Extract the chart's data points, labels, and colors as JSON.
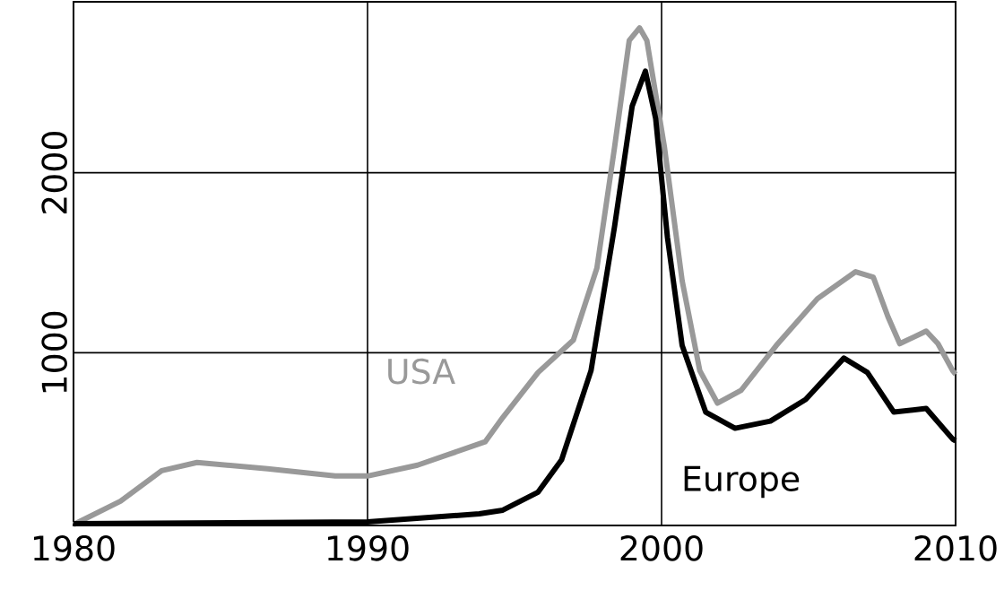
{
  "chart_data": {
    "type": "line",
    "xlim": [
      1980,
      2010
    ],
    "ylim": [
      40,
      2950
    ],
    "xticks": [
      1980,
      1990,
      2000,
      2010
    ],
    "yticks": [
      1000,
      2000
    ],
    "grid": true,
    "legend": false,
    "marker": "none",
    "line_style": "solid",
    "series": [
      {
        "name": "USA",
        "color": "#999999",
        "x": [
          1980,
          1981.6,
          1983,
          1984.2,
          1986.6,
          1988.9,
          1990,
          1991.7,
          1994,
          1994.6,
          1995.8,
          1997,
          1997.8,
          1998.4,
          1998.9,
          1999.25,
          1999.5,
          2000.1,
          2000.7,
          2001.3,
          2001.9,
          2002.7,
          2003.9,
          2005.3,
          2006.6,
          2007.2,
          2007.7,
          2008.1,
          2009,
          2009.4,
          2009.9,
          2010
        ],
        "values": [
          45,
          175,
          345,
          390,
          355,
          315,
          315,
          375,
          505,
          640,
          890,
          1070,
          1470,
          2140,
          2735,
          2805,
          2735,
          2140,
          1400,
          900,
          720,
          790,
          1040,
          1300,
          1450,
          1420,
          1200,
          1050,
          1120,
          1050,
          900,
          880
        ]
      },
      {
        "name": "Europe",
        "color": "#000000",
        "x": [
          1980,
          1990,
          1993.8,
          1994.6,
          1995.8,
          1996.6,
          1997.6,
          1998.4,
          1999,
          1999.45,
          1999.8,
          2000.2,
          2000.7,
          2001.5,
          2002.5,
          2003.7,
          2004.9,
          2006.2,
          2007,
          2007.9,
          2009,
          2009.9,
          2010
        ],
        "values": [
          50,
          60,
          105,
          125,
          225,
          405,
          900,
          1700,
          2370,
          2565,
          2300,
          1640,
          1040,
          670,
          580,
          620,
          740,
          970,
          890,
          670,
          690,
          520,
          510
        ]
      }
    ]
  }
}
